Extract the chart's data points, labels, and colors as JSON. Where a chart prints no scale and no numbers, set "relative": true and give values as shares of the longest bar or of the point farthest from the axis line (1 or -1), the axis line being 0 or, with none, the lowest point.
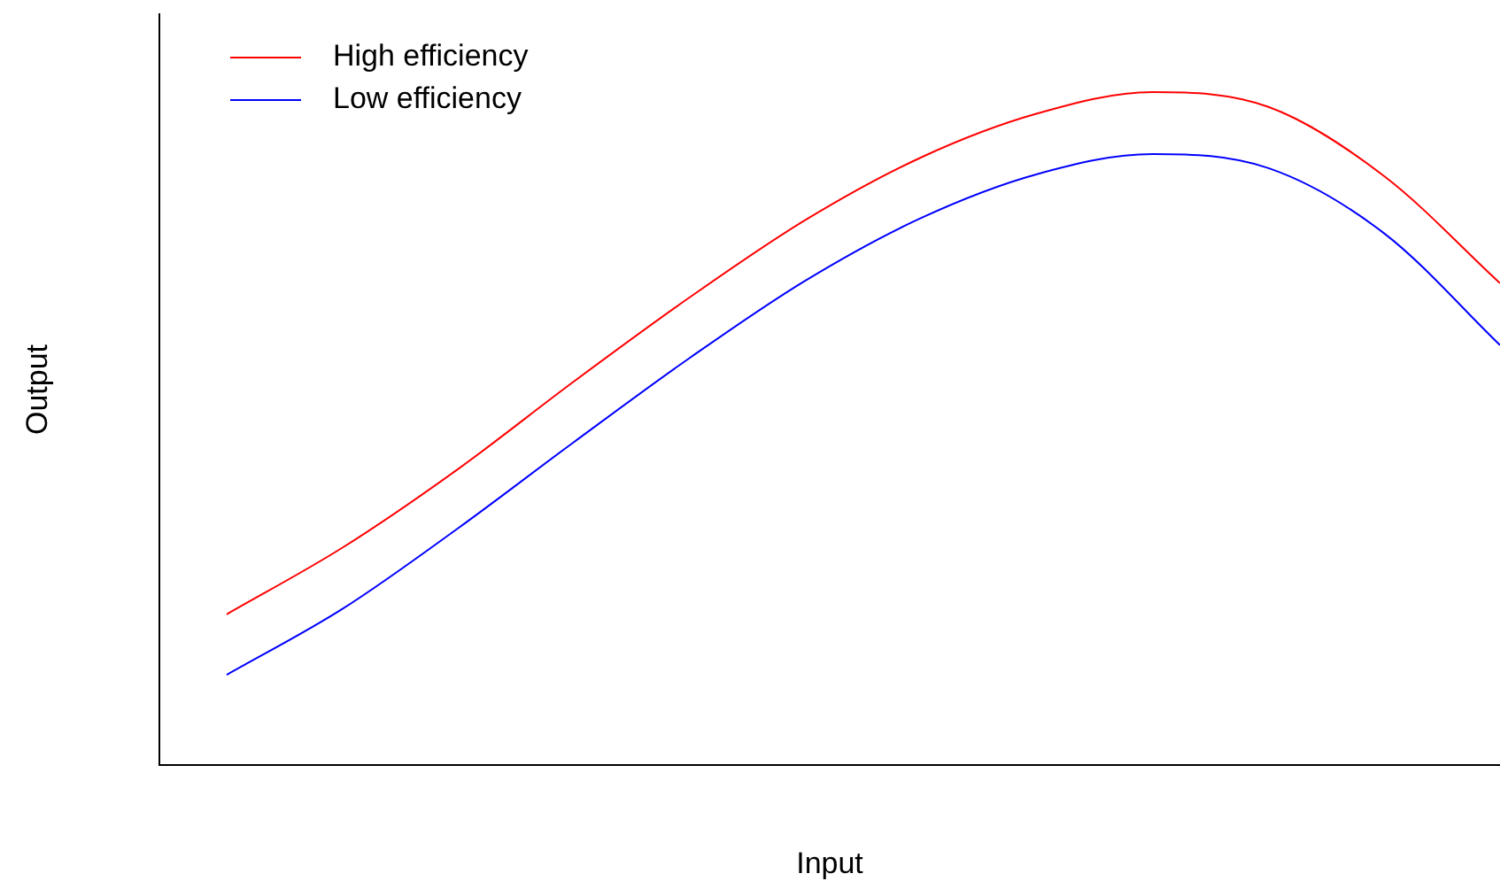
{
  "chart_data": {
    "type": "line",
    "xlabel": "Input",
    "ylabel": "Output",
    "relative": true,
    "legend": "top left",
    "marker": "none",
    "line_style": "solid",
    "grid": false,
    "categories": [
      null,
      null,
      null,
      null,
      null,
      null,
      null,
      null,
      null,
      null,
      null,
      null
    ],
    "series": [
      {
        "name": "High efficiency",
        "color": "#ff0000",
        "values": [
          0.224,
          0.323,
          0.44,
          0.57,
          0.695,
          0.81,
          0.903,
          0.968,
          1.0,
          0.978,
          0.875,
          0.716
        ]
      },
      {
        "name": "Low efficiency",
        "color": "#0000ff",
        "values": [
          0.134,
          0.232,
          0.352,
          0.48,
          0.605,
          0.72,
          0.813,
          0.878,
          0.908,
          0.887,
          0.79,
          0.624
        ]
      }
    ]
  }
}
